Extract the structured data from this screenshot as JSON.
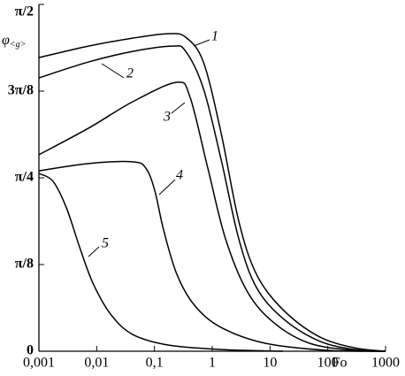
{
  "chart_data": {
    "type": "line",
    "y_label": {
      "symbol": "φ",
      "subscript": "<g>"
    },
    "x_label": "Fo",
    "xscale": "log",
    "xlim": [
      0.001,
      1000
    ],
    "xticks": [
      {
        "value": 0.001,
        "label": "0,001"
      },
      {
        "value": 0.01,
        "label": "0,01"
      },
      {
        "value": 0.1,
        "label": "0,1"
      },
      1,
      10,
      100,
      1000
    ],
    "ylim": [
      0,
      1.5708
    ],
    "yticks": [
      0,
      {
        "value": 0.3927,
        "label": "π/8"
      },
      {
        "value": 0.7854,
        "label": "π/4"
      },
      {
        "value": 1.1781,
        "label": "3π/8"
      },
      {
        "value": 1.5708,
        "label": "π/2"
      }
    ],
    "series": [
      {
        "name": "1",
        "color": "#000000",
        "x": [
          0.001,
          0.0072,
          0.042,
          0.172,
          0.348,
          0.703,
          1.42,
          2.88,
          5.82,
          16.8,
          68.7,
          281,
          1000
        ],
        "values": [
          1.33,
          1.382,
          1.418,
          1.438,
          1.422,
          1.31,
          0.99,
          0.589,
          0.349,
          0.188,
          0.068,
          0.016,
          0
        ]
      },
      {
        "name": "2",
        "color": "#000000",
        "x": [
          0.001,
          0.0072,
          0.042,
          0.205,
          0.348,
          0.703,
          1.42,
          2.88,
          5.82,
          16.8,
          68.7,
          281,
          1000
        ],
        "values": [
          1.238,
          1.31,
          1.358,
          1.382,
          1.358,
          1.19,
          0.87,
          0.509,
          0.289,
          0.148,
          0.048,
          0.008,
          0
        ]
      },
      {
        "name": "3",
        "color": "#000000",
        "x": [
          0.001,
          0.0072,
          0.042,
          0.244,
          0.414,
          0.839,
          1.7,
          4.09,
          11.8,
          48.3,
          281,
          1000
        ],
        "values": [
          0.89,
          1.01,
          1.13,
          1.218,
          1.15,
          0.829,
          0.509,
          0.268,
          0.128,
          0.036,
          0.004,
          0
        ]
      },
      {
        "name": "4",
        "color": "#000000",
        "x": [
          0.001,
          0.0072,
          0.042,
          0.071,
          0.101,
          0.144,
          0.244,
          0.494,
          1.42,
          8.29,
          97.7,
          1000
        ],
        "values": [
          0.817,
          0.85,
          0.858,
          0.829,
          0.729,
          0.549,
          0.349,
          0.208,
          0.108,
          0.036,
          0.004,
          0
        ]
      },
      {
        "name": "5",
        "color": "#000000",
        "x": [
          0.001,
          0.00176,
          0.003,
          0.0051,
          0.0086,
          0.0174,
          0.042,
          0.172,
          1.42,
          16.8
        ],
        "values": [
          0.805,
          0.769,
          0.649,
          0.469,
          0.309,
          0.168,
          0.076,
          0.028,
          0.008,
          0
        ]
      }
    ]
  }
}
